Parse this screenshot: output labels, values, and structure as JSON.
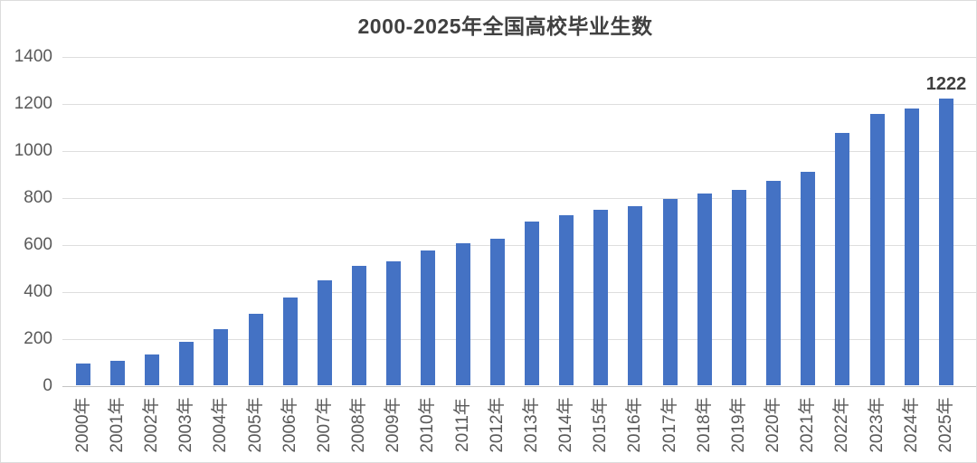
{
  "chart_data": {
    "type": "bar",
    "title": "2000-2025年全国高校毕业生数",
    "categories": [
      "2000年",
      "2001年",
      "2002年",
      "2003年",
      "2004年",
      "2005年",
      "2006年",
      "2007年",
      "2008年",
      "2009年",
      "2010年",
      "2011年",
      "2012年",
      "2013年",
      "2014年",
      "2015年",
      "2016年",
      "2017年",
      "2018年",
      "2019年",
      "2020年",
      "2021年",
      "2022年",
      "2023年",
      "2024年",
      "2025年"
    ],
    "values": [
      95,
      104,
      134,
      188,
      239,
      307,
      377,
      448,
      512,
      531,
      575,
      608,
      625,
      699,
      727,
      749,
      765,
      795,
      820,
      834,
      874,
      909,
      1076,
      1158,
      1179,
      1222
    ],
    "xlabel": "",
    "ylabel": "",
    "ylim": [
      0,
      1400
    ],
    "yticks": [
      0,
      200,
      400,
      600,
      800,
      1000,
      1200,
      1400
    ],
    "grid": true,
    "legend_position": "none",
    "bar_color": "#4472c4",
    "gridline_color": "#dedede",
    "axis_label_color": "#595959",
    "title_color": "#404040",
    "annotation": {
      "text": "1222",
      "category_index": 25
    }
  }
}
